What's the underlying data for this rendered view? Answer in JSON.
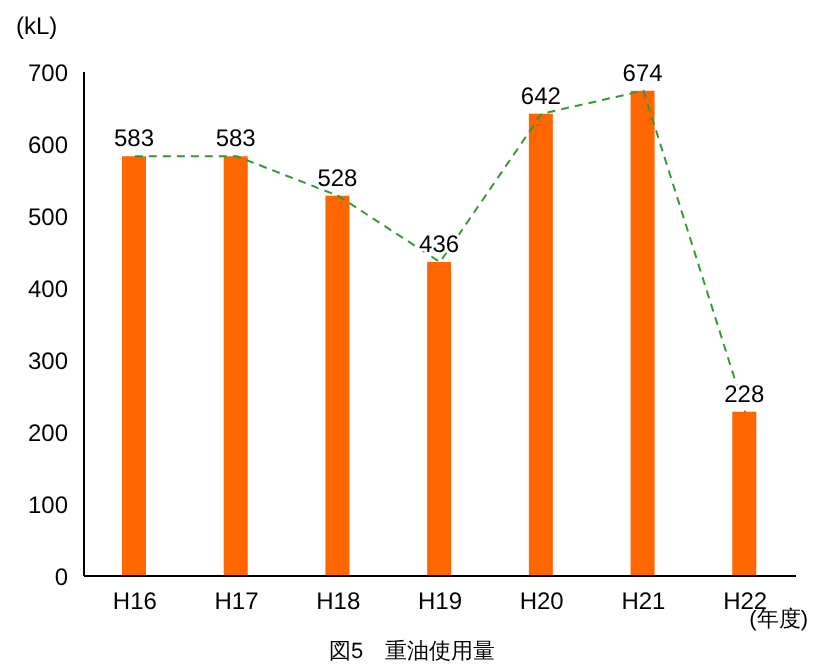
{
  "chart_data": {
    "type": "bar",
    "title": "図5　重油使用量",
    "xlabel": "(年度)",
    "ylabel": "(kL)",
    "categories": [
      "H16",
      "H17",
      "H18",
      "H19",
      "H20",
      "H21",
      "H22"
    ],
    "series": [
      {
        "color": "#ff6600",
        "values": [
          583,
          583,
          528,
          436,
          642,
          674,
          228
        ],
        "value_labels": [
          "583",
          "583",
          "528",
          "436",
          "642",
          "674",
          "228"
        ]
      },
      {
        "type": "line",
        "color": "#339933",
        "values": [
          583,
          583,
          528,
          436,
          642,
          674,
          228
        ],
        "marker": "none",
        "line_style": "dashed"
      }
    ],
    "ylim": [
      0,
      700
    ],
    "yticks": [
      0,
      100,
      200,
      300,
      400,
      500,
      600,
      700
    ]
  }
}
